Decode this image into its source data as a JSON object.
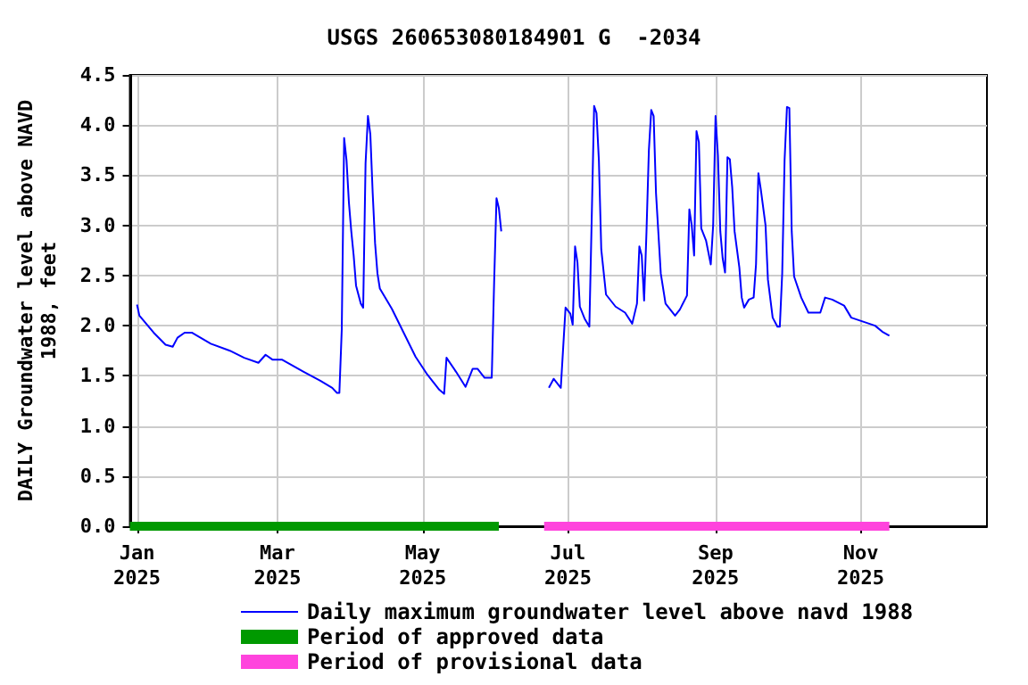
{
  "chart_data": {
    "type": "line",
    "title": "USGS 260653080184901 G  -2034",
    "ylabel": "DAILY Groundwater level above NAVD\n1988, feet",
    "xlim": [
      "2024-12-29",
      "2025-12-24"
    ],
    "xticks": [
      {
        "value": "2025-01-01",
        "label": "Jan\n2025"
      },
      {
        "value": "2025-03-01",
        "label": "Mar\n2025"
      },
      {
        "value": "2025-05-01",
        "label": "May\n2025"
      },
      {
        "value": "2025-07-01",
        "label": "Jul\n2025"
      },
      {
        "value": "2025-09-01",
        "label": "Sep\n2025"
      },
      {
        "value": "2025-11-01",
        "label": "Nov\n2025"
      }
    ],
    "ylim": [
      0,
      4.5
    ],
    "yticks": [
      {
        "value": 0,
        "label": "0.0"
      },
      {
        "value": 0.5,
        "label": "0.5"
      },
      {
        "value": 1,
        "label": "1.0"
      },
      {
        "value": 1.5,
        "label": "1.5"
      },
      {
        "value": 2,
        "label": "2.0"
      },
      {
        "value": 2.5,
        "label": "2.5"
      },
      {
        "value": 3,
        "label": "3.0"
      },
      {
        "value": 3.5,
        "label": "3.5"
      },
      {
        "value": 4,
        "label": "4.0"
      },
      {
        "value": 4.5,
        "label": "4.5"
      }
    ],
    "grid": true,
    "legend": "bottom",
    "marker": "none",
    "line_style": "solid",
    "series": [
      {
        "name": "Daily maximum groundwater level above navd 1988",
        "color": "#0000ff",
        "x": [
          "2025-01-01",
          "2025-01-02",
          "2025-01-08",
          "2025-01-13",
          "2025-01-16",
          "2025-01-18",
          "2025-01-21",
          "2025-01-24",
          "2025-02-01",
          "2025-02-09",
          "2025-02-15",
          "2025-02-21",
          "2025-02-24",
          "2025-02-27",
          "2025-03-03",
          "2025-03-12",
          "2025-03-19",
          "2025-03-24",
          "2025-03-26",
          "2025-03-27",
          "2025-03-28",
          "2025-03-29",
          "2025-03-30",
          "2025-03-31",
          "2025-04-01",
          "2025-04-02",
          "2025-04-03",
          "2025-04-05",
          "2025-04-06",
          "2025-04-07",
          "2025-04-08",
          "2025-04-09",
          "2025-04-10",
          "2025-04-11",
          "2025-04-12",
          "2025-04-13",
          "2025-04-18",
          "2025-04-23",
          "2025-04-28",
          "2025-05-03",
          "2025-05-08",
          "2025-05-10",
          "2025-05-11",
          "2025-05-15",
          "2025-05-19",
          "2025-05-22",
          "2025-05-24",
          "2025-05-27",
          "2025-05-30",
          "2025-05-31",
          "2025-06-01",
          "2025-06-02",
          "2025-06-03",
          "2025-06-12",
          "2025-06-23",
          "2025-06-25",
          "2025-06-28",
          "2025-06-29",
          "2025-06-30",
          "2025-07-02",
          "2025-07-03",
          "2025-07-04",
          "2025-07-05",
          "2025-07-06",
          "2025-07-08",
          "2025-07-10",
          "2025-07-11",
          "2025-07-12",
          "2025-07-13",
          "2025-07-14",
          "2025-07-15",
          "2025-07-17",
          "2025-07-21",
          "2025-07-25",
          "2025-07-28",
          "2025-07-30",
          "2025-07-31",
          "2025-08-01",
          "2025-08-02",
          "2025-08-03",
          "2025-08-04",
          "2025-08-05",
          "2025-08-06",
          "2025-08-07",
          "2025-08-09",
          "2025-08-11",
          "2025-08-15",
          "2025-08-17",
          "2025-08-20",
          "2025-08-21",
          "2025-08-22",
          "2025-08-23",
          "2025-08-24",
          "2025-08-25",
          "2025-08-26",
          "2025-08-28",
          "2025-08-30",
          "2025-08-31",
          "2025-09-01",
          "2025-09-02",
          "2025-09-03",
          "2025-09-04",
          "2025-09-05",
          "2025-09-06",
          "2025-09-07",
          "2025-09-08",
          "2025-09-09",
          "2025-09-11",
          "2025-09-12",
          "2025-09-13",
          "2025-09-15",
          "2025-09-17",
          "2025-09-18",
          "2025-09-19",
          "2025-09-20",
          "2025-09-22",
          "2025-09-23",
          "2025-09-25",
          "2025-09-27",
          "2025-09-28",
          "2025-09-29",
          "2025-09-30",
          "2025-10-01",
          "2025-10-02",
          "2025-10-03",
          "2025-10-04",
          "2025-10-07",
          "2025-10-10",
          "2025-10-15",
          "2025-10-17",
          "2025-10-20",
          "2025-10-25",
          "2025-10-28",
          "2025-11-02",
          "2025-11-07",
          "2025-11-10",
          "2025-11-13"
        ],
        "values": [
          2.21,
          2.1,
          1.93,
          1.81,
          1.79,
          1.88,
          1.93,
          1.93,
          1.82,
          1.75,
          1.68,
          1.63,
          1.71,
          1.66,
          1.66,
          1.54,
          1.45,
          1.38,
          1.33,
          1.33,
          1.96,
          3.87,
          3.65,
          3.23,
          2.94,
          2.7,
          2.4,
          2.22,
          2.18,
          3.62,
          4.09,
          3.91,
          3.32,
          2.82,
          2.52,
          2.37,
          2.17,
          1.93,
          1.69,
          1.51,
          1.36,
          1.32,
          1.68,
          1.54,
          1.39,
          1.57,
          1.57,
          1.48,
          1.48,
          2.43,
          3.27,
          3.17,
          2.94,
          null,
          1.38,
          1.47,
          1.38,
          1.78,
          2.18,
          2.12,
          2.01,
          2.79,
          2.63,
          2.19,
          2.07,
          1.99,
          3.08,
          4.19,
          4.12,
          3.65,
          2.76,
          2.31,
          2.19,
          2.13,
          2.02,
          2.22,
          2.79,
          2.7,
          2.25,
          2.94,
          3.75,
          4.15,
          4.09,
          3.32,
          2.52,
          2.22,
          2.1,
          2.16,
          2.3,
          3.16,
          3.0,
          2.7,
          3.94,
          3.83,
          2.97,
          2.85,
          2.61,
          3.0,
          4.09,
          3.7,
          2.94,
          2.67,
          2.53,
          3.68,
          3.66,
          3.38,
          2.94,
          2.58,
          2.28,
          2.18,
          2.26,
          2.28,
          2.61,
          3.52,
          3.36,
          3.0,
          2.46,
          2.08,
          1.99,
          1.99,
          2.52,
          3.65,
          4.18,
          4.17,
          2.94,
          2.49,
          2.28,
          2.13,
          2.13,
          2.28,
          2.26,
          2.2,
          2.08,
          2.04,
          2.0,
          1.94,
          1.9
        ]
      },
      {
        "name": "Period of approved data",
        "color": "#009900",
        "x": [
          "2024-12-29",
          "2025-06-02"
        ],
        "values": [
          0,
          0
        ]
      },
      {
        "name": "Period of provisional data",
        "color": "#ff44dd",
        "x": [
          "2025-06-21",
          "2025-11-13"
        ],
        "values": [
          0,
          0
        ]
      }
    ]
  }
}
